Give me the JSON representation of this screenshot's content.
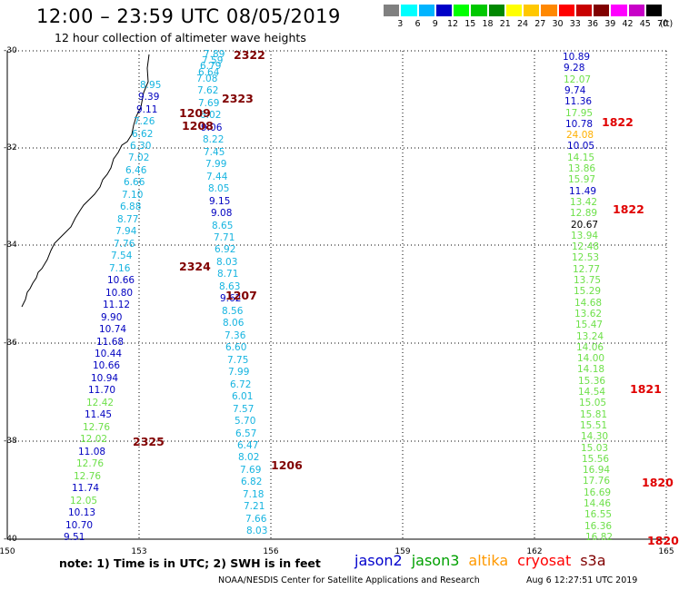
{
  "header": {
    "title": "12:00 – 23:59 UTC 08/05/2019",
    "subtitle": "12 hour collection of altimeter wave heights"
  },
  "legend": {
    "colors": [
      "#808080",
      "#00ffff",
      "#00b4ff",
      "#0000c8",
      "#00ff00",
      "#00c800",
      "#008800",
      "#ffff00",
      "#ffc800",
      "#ff8800",
      "#ff0000",
      "#c80000",
      "#800000",
      "#ff00ff",
      "#c800c8",
      "#000000"
    ],
    "labels": [
      "3",
      "6",
      "9",
      "12",
      "15",
      "18",
      "21",
      "24",
      "27",
      "30",
      "33",
      "36",
      "39",
      "42",
      "45",
      "70",
      "(ft)"
    ]
  },
  "colors": {
    "c1": "#16b4e0",
    "c2": "#0000c0",
    "c3": "#6ee04a",
    "c4": "#000000",
    "c5": "#ffb000",
    "ts_dark": "#800000",
    "ts_red": "#e00000"
  },
  "axes": {
    "lat": [
      "-30",
      "-32",
      "-34",
      "-36",
      "-38",
      "-40"
    ],
    "lon": [
      "150",
      "153",
      "156",
      "159",
      "162",
      "165"
    ]
  },
  "left_values": [
    {
      "t": "7.89",
      "c": "c1"
    },
    {
      "t": "7.59",
      "c": "c1"
    },
    {
      "t": "6.79",
      "c": "c1"
    },
    {
      "t": "6.64",
      "c": "c1"
    },
    {
      "t": "7.08",
      "c": "c1"
    },
    {
      "t": "8.95",
      "c": "c1"
    },
    {
      "t": "7.62",
      "c": "c1"
    },
    {
      "t": "9.39",
      "c": "c2"
    },
    {
      "t": "7.69",
      "c": "c1"
    },
    {
      "t": "9.11",
      "c": "c2"
    },
    {
      "t": "6.02",
      "c": "c1"
    },
    {
      "t": "7.26",
      "c": "c1"
    },
    {
      "t": "9.06",
      "c": "c2"
    },
    {
      "t": "6.62",
      "c": "c1"
    },
    {
      "t": "8.22",
      "c": "c1"
    },
    {
      "t": "6.30",
      "c": "c1"
    },
    {
      "t": "7.45",
      "c": "c1"
    },
    {
      "t": "7.02",
      "c": "c1"
    },
    {
      "t": "7.99",
      "c": "c1"
    },
    {
      "t": "6.46",
      "c": "c1"
    },
    {
      "t": "7.44",
      "c": "c1"
    },
    {
      "t": "6.66",
      "c": "c1"
    },
    {
      "t": "8.05",
      "c": "c1"
    },
    {
      "t": "7.10",
      "c": "c1"
    },
    {
      "t": "9.15",
      "c": "c2"
    },
    {
      "t": "6.88",
      "c": "c1"
    },
    {
      "t": "9.08",
      "c": "c2"
    },
    {
      "t": "8.77",
      "c": "c1"
    },
    {
      "t": "8.65",
      "c": "c1"
    },
    {
      "t": "7.94",
      "c": "c1"
    },
    {
      "t": "7.71",
      "c": "c1"
    },
    {
      "t": "7.76",
      "c": "c1"
    },
    {
      "t": "6.92",
      "c": "c1"
    },
    {
      "t": "7.54",
      "c": "c1"
    },
    {
      "t": "8.03",
      "c": "c1"
    },
    {
      "t": "7.16",
      "c": "c1"
    },
    {
      "t": "8.71",
      "c": "c1"
    },
    {
      "t": "10.66",
      "c": "c2"
    },
    {
      "t": "8.63",
      "c": "c1"
    },
    {
      "t": "10.80",
      "c": "c2"
    },
    {
      "t": "9.62",
      "c": "c2"
    },
    {
      "t": "11.12",
      "c": "c2"
    },
    {
      "t": "8.56",
      "c": "c1"
    },
    {
      "t": "9.90",
      "c": "c2"
    },
    {
      "t": "8.06",
      "c": "c1"
    },
    {
      "t": "10.74",
      "c": "c2"
    },
    {
      "t": "7.36",
      "c": "c1"
    },
    {
      "t": "11.68",
      "c": "c2"
    },
    {
      "t": "6.60",
      "c": "c1"
    },
    {
      "t": "10.44",
      "c": "c2"
    },
    {
      "t": "7.75",
      "c": "c1"
    },
    {
      "t": "10.66",
      "c": "c2"
    },
    {
      "t": "7.99",
      "c": "c1"
    },
    {
      "t": "10.94",
      "c": "c2"
    },
    {
      "t": "6.72",
      "c": "c1"
    },
    {
      "t": "11.70",
      "c": "c2"
    },
    {
      "t": "6.01",
      "c": "c1"
    },
    {
      "t": "12.42",
      "c": "c3"
    },
    {
      "t": "7.57",
      "c": "c1"
    },
    {
      "t": "11.45",
      "c": "c2"
    },
    {
      "t": "5.70",
      "c": "c1"
    },
    {
      "t": "12.76",
      "c": "c3"
    },
    {
      "t": "6.57",
      "c": "c1"
    },
    {
      "t": "12.02",
      "c": "c3"
    },
    {
      "t": "6.47",
      "c": "c1"
    },
    {
      "t": "11.08",
      "c": "c2"
    },
    {
      "t": "8.02",
      "c": "c1"
    },
    {
      "t": "12.76",
      "c": "c3"
    },
    {
      "t": "7.69",
      "c": "c1"
    },
    {
      "t": "12.76",
      "c": "c3"
    },
    {
      "t": "6.82",
      "c": "c1"
    },
    {
      "t": "11.74",
      "c": "c2"
    },
    {
      "t": "7.18",
      "c": "c1"
    },
    {
      "t": "12.05",
      "c": "c3"
    },
    {
      "t": "7.21",
      "c": "c1"
    },
    {
      "t": "10.13",
      "c": "c2"
    },
    {
      "t": "7.66",
      "c": "c1"
    },
    {
      "t": "10.70",
      "c": "c2"
    },
    {
      "t": "8.03",
      "c": "c1"
    },
    {
      "t": "9.51",
      "c": "c2"
    }
  ],
  "right_values": [
    {
      "t": "10.89",
      "c": "c2"
    },
    {
      "t": "9.28",
      "c": "c2"
    },
    {
      "t": "12.07",
      "c": "c3"
    },
    {
      "t": "9.74",
      "c": "c2"
    },
    {
      "t": "11.36",
      "c": "c2"
    },
    {
      "t": "17.95",
      "c": "c3"
    },
    {
      "t": "10.78",
      "c": "c2"
    },
    {
      "t": "24.08",
      "c": "c5"
    },
    {
      "t": "10.05",
      "c": "c2"
    },
    {
      "t": "14.15",
      "c": "c3"
    },
    {
      "t": "13.86",
      "c": "c3"
    },
    {
      "t": "15.97",
      "c": "c3"
    },
    {
      "t": "11.49",
      "c": "c2"
    },
    {
      "t": "13.42",
      "c": "c3"
    },
    {
      "t": "12.89",
      "c": "c3"
    },
    {
      "t": "20.67",
      "c": "c4"
    },
    {
      "t": "13.94",
      "c": "c3"
    },
    {
      "t": "12.48",
      "c": "c3"
    },
    {
      "t": "12.53",
      "c": "c3"
    },
    {
      "t": "12.77",
      "c": "c3"
    },
    {
      "t": "13.75",
      "c": "c3"
    },
    {
      "t": "15.29",
      "c": "c3"
    },
    {
      "t": "14.68",
      "c": "c3"
    },
    {
      "t": "13.62",
      "c": "c3"
    },
    {
      "t": "15.47",
      "c": "c3"
    },
    {
      "t": "13.24",
      "c": "c3"
    },
    {
      "t": "14.06",
      "c": "c3"
    },
    {
      "t": "14.00",
      "c": "c3"
    },
    {
      "t": "14.18",
      "c": "c3"
    },
    {
      "t": "15.36",
      "c": "c3"
    },
    {
      "t": "14.54",
      "c": "c3"
    },
    {
      "t": "15.05",
      "c": "c3"
    },
    {
      "t": "15.81",
      "c": "c3"
    },
    {
      "t": "15.51",
      "c": "c3"
    },
    {
      "t": "14.30",
      "c": "c3"
    },
    {
      "t": "15.03",
      "c": "c3"
    },
    {
      "t": "15.56",
      "c": "c3"
    },
    {
      "t": "16.94",
      "c": "c3"
    },
    {
      "t": "17.76",
      "c": "c3"
    },
    {
      "t": "16.69",
      "c": "c3"
    },
    {
      "t": "14.46",
      "c": "c3"
    },
    {
      "t": "16.55",
      "c": "c3"
    },
    {
      "t": "16.36",
      "c": "c3"
    },
    {
      "t": "16.82",
      "c": "c3"
    }
  ],
  "timestamps_left": [
    {
      "t": "2322",
      "c": "ts_dark"
    },
    {
      "t": "2323",
      "c": "ts_dark"
    },
    {
      "t": "1209",
      "c": "ts_dark"
    },
    {
      "t": "1208",
      "c": "ts_dark"
    },
    {
      "t": "2324",
      "c": "ts_dark"
    },
    {
      "t": "1207",
      "c": "ts_dark"
    },
    {
      "t": "2325",
      "c": "ts_dark"
    },
    {
      "t": "1206",
      "c": "ts_dark"
    }
  ],
  "timestamps_right": [
    {
      "t": "1822",
      "c": "ts_red"
    },
    {
      "t": "1822",
      "c": "ts_red"
    },
    {
      "t": "1821",
      "c": "ts_red"
    },
    {
      "t": "1820",
      "c": "ts_red"
    },
    {
      "t": "1820",
      "c": "ts_red"
    }
  ],
  "footer": {
    "note": "note:  1) Time is in UTC;  2) SWH is in feet",
    "satellites": [
      {
        "name": "jason2",
        "color": "#0000cc"
      },
      {
        "name": "jason3",
        "color": "#00a000"
      },
      {
        "name": "altika",
        "color": "#ff9900"
      },
      {
        "name": "cryosat",
        "color": "#ff0000"
      },
      {
        "name": "s3a",
        "color": "#800000"
      }
    ],
    "credit": "NOAA/NESDIS Center for Satellite Applications and Research",
    "stamp": "Aug  6 12:27:51 UTC 2019"
  }
}
